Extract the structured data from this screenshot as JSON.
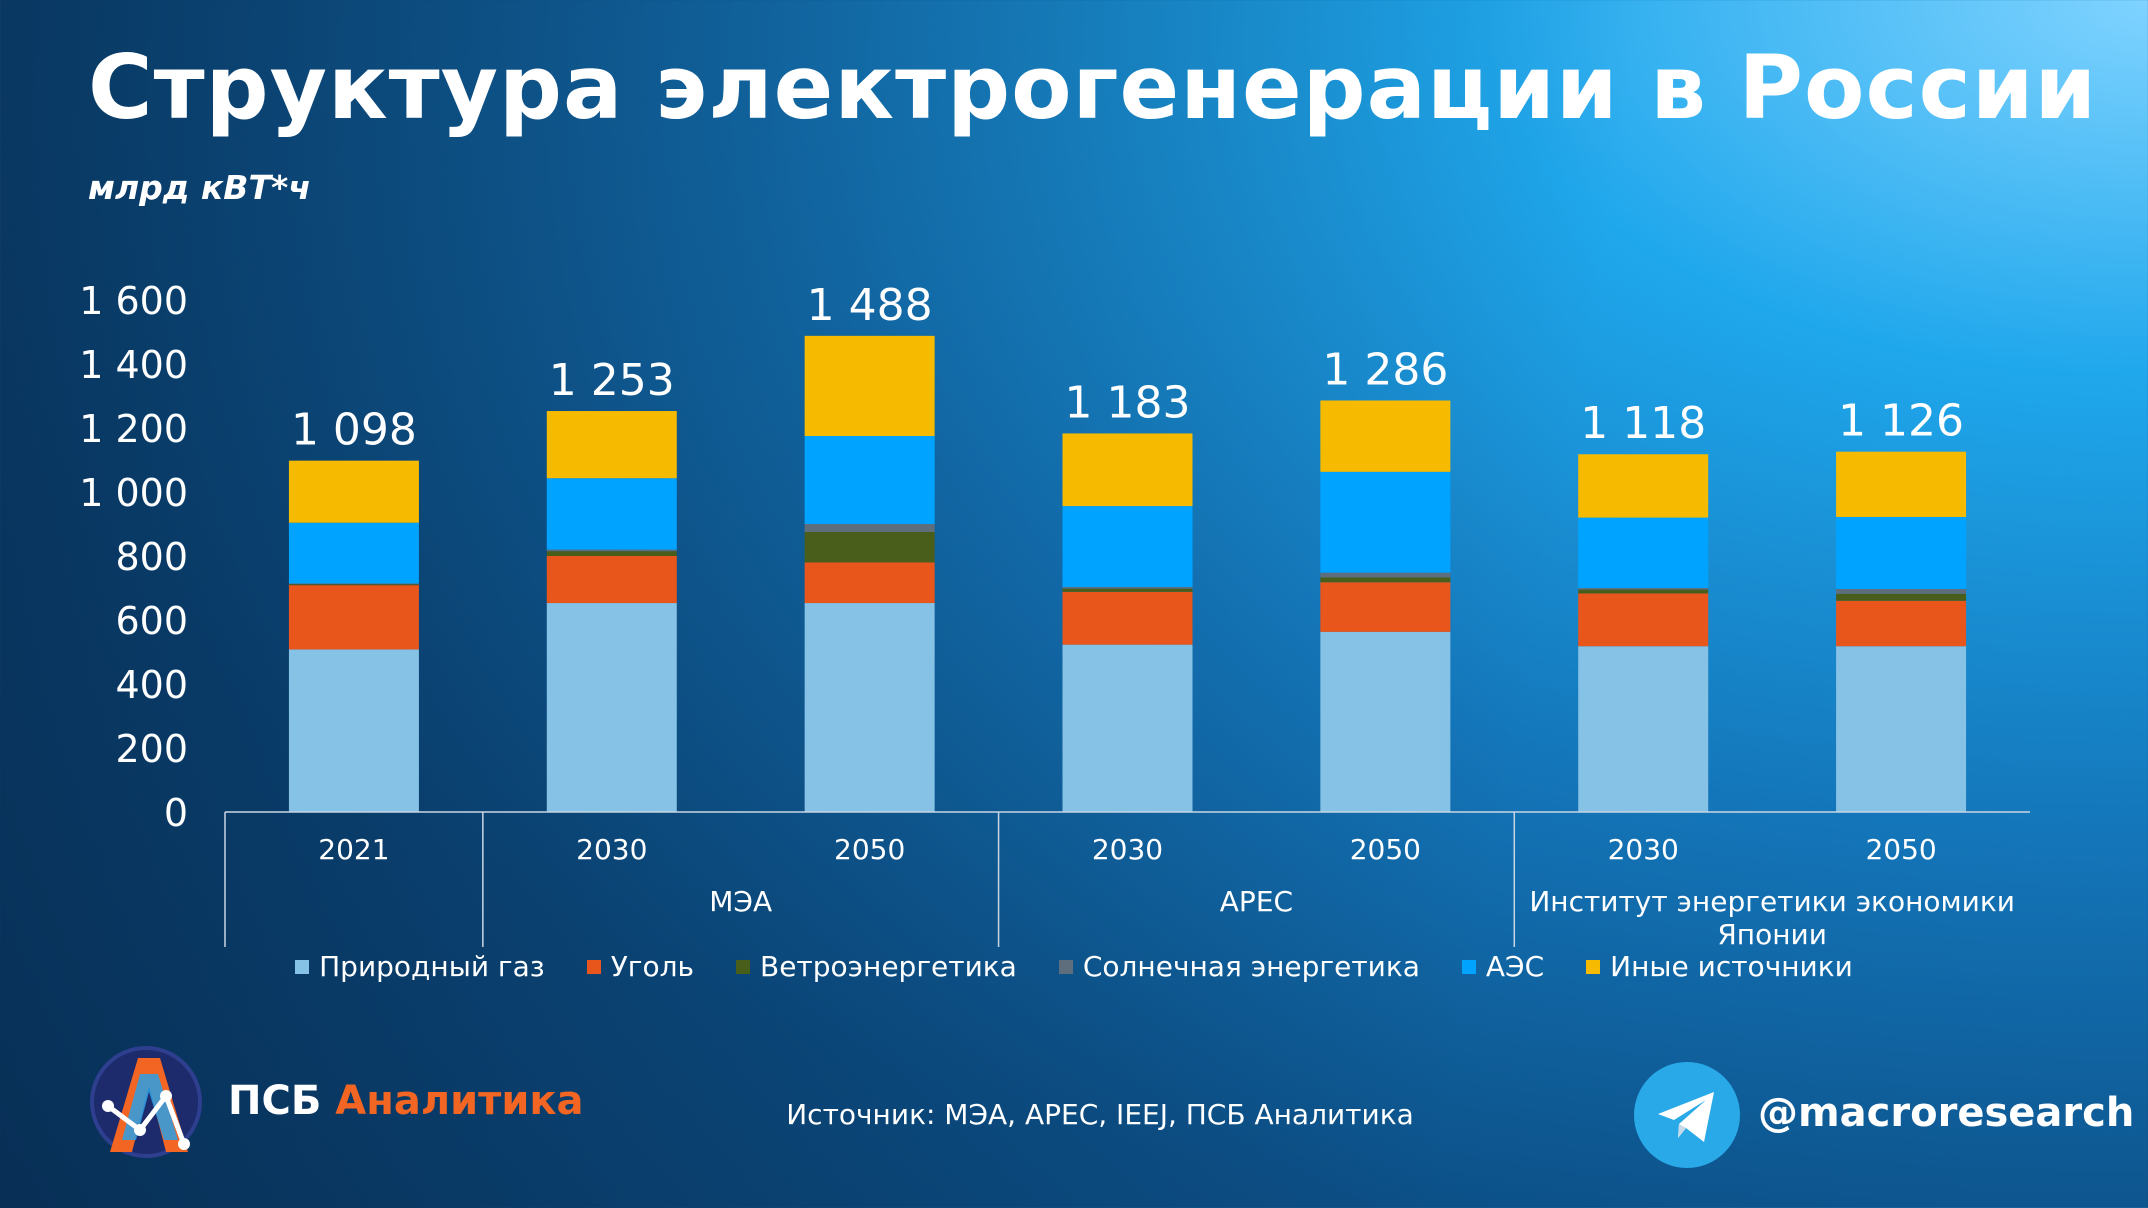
{
  "title": "Структура электрогенерации в России",
  "subtitle": "млрд кВТ*ч",
  "colors": {
    "gas": "#86c1e6",
    "coal": "#e8561b",
    "wind": "#4a5e1c",
    "solar": "#5f6e7c",
    "nuclear": "#00a3ff",
    "other": "#f6ba00",
    "brand_accent": "#f26522",
    "telegram": "#29a9e8"
  },
  "chart_data": {
    "type": "bar",
    "stacked": true,
    "ylim": [
      0,
      1600
    ],
    "yticks": [
      "0",
      "200",
      "400",
      "600",
      "800",
      "1 000",
      "1 200",
      "1 400",
      "1 600"
    ],
    "categories": [
      "2021",
      "2030",
      "2050",
      "2030",
      "2050",
      "2030",
      "2050"
    ],
    "groups": [
      {
        "label": "",
        "span": [
          0,
          0
        ]
      },
      {
        "label": "МЭА",
        "span": [
          1,
          2
        ]
      },
      {
        "label": "APEC",
        "span": [
          3,
          4
        ]
      },
      {
        "label": "Институт энергетики экономики Японии",
        "span": [
          5,
          6
        ]
      }
    ],
    "totals": [
      "1 098",
      "1 253",
      "1 488",
      "1 183",
      "1 286",
      "1 118",
      "1 126"
    ],
    "total_values": [
      1098,
      1253,
      1488,
      1183,
      1286,
      1118,
      1126
    ],
    "series": [
      {
        "key": "gas",
        "name": "Природный газ",
        "values": [
          508,
          653,
          653,
          523,
          563,
          518,
          518
        ]
      },
      {
        "key": "coal",
        "name": "Уголь",
        "values": [
          201,
          147,
          127,
          165,
          155,
          165,
          142
        ]
      },
      {
        "key": "wind",
        "name": "Ветроэнергетика",
        "values": [
          3,
          15,
          95,
          10,
          15,
          12,
          22
        ]
      },
      {
        "key": "solar",
        "name": "Солнечная энергетика",
        "values": [
          2,
          5,
          25,
          5,
          15,
          5,
          15
        ]
      },
      {
        "key": "nuclear",
        "name": "АЭС",
        "values": [
          190,
          223,
          275,
          253,
          315,
          220,
          225
        ]
      },
      {
        "key": "other",
        "name": "Иные источники",
        "values": [
          194,
          210,
          313,
          227,
          223,
          198,
          204
        ]
      }
    ],
    "legend_position": "bottom",
    "grid": false
  },
  "footer": {
    "brand_part1": "ПСБ",
    "brand_part2": "Аналитика",
    "source": "Источник: МЭА, APEC, IEEJ, ПСБ Аналитика",
    "telegram_handle": "@macroresearch"
  }
}
